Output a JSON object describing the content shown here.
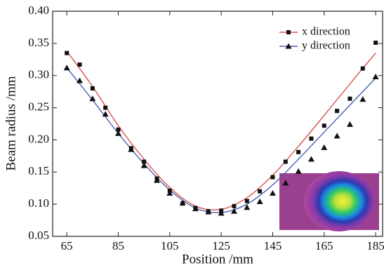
{
  "chart_data": {
    "type": "scatter",
    "x_label": "Position /mm",
    "y_label": "Beam radius /mm",
    "x": [
      65,
      70,
      75,
      80,
      85,
      90,
      95,
      100,
      105,
      110,
      115,
      120,
      125,
      130,
      135,
      140,
      145,
      150,
      155,
      160,
      165,
      170,
      175,
      180,
      185
    ],
    "series": [
      {
        "name": "x direction",
        "color": "#d9534f",
        "marker": "square",
        "values": [
          0.335,
          0.317,
          0.28,
          0.25,
          0.216,
          0.187,
          0.166,
          0.14,
          0.121,
          0.101,
          0.094,
          0.089,
          0.09,
          0.097,
          0.105,
          0.12,
          0.142,
          0.166,
          0.181,
          0.202,
          0.222,
          0.245,
          0.264,
          0.311,
          0.351
        ],
        "fit_x": [
          65,
          75,
          85,
          95,
          105,
          115,
          125,
          135,
          145,
          155,
          165,
          175,
          185
        ],
        "fit": [
          0.338,
          0.283,
          0.222,
          0.17,
          0.126,
          0.097,
          0.092,
          0.11,
          0.145,
          0.19,
          0.238,
          0.287,
          0.335
        ]
      },
      {
        "name": "y direction",
        "color": "#4a5fb0",
        "marker": "triangle",
        "values": [
          0.312,
          0.292,
          0.264,
          0.24,
          0.21,
          0.185,
          0.16,
          0.137,
          0.117,
          0.102,
          0.093,
          0.088,
          0.086,
          0.089,
          0.095,
          0.104,
          0.117,
          0.133,
          0.151,
          0.17,
          0.188,
          0.206,
          0.224,
          0.263,
          0.298
        ],
        "fit_x": [
          65,
          75,
          85,
          95,
          105,
          115,
          125,
          135,
          145,
          155,
          165,
          175,
          185
        ],
        "fit": [
          0.312,
          0.262,
          0.21,
          0.163,
          0.122,
          0.094,
          0.087,
          0.1,
          0.13,
          0.17,
          0.212,
          0.254,
          0.296
        ]
      }
    ],
    "xlim": [
      59.5,
      187.7
    ],
    "xticks": [
      65,
      85,
      105,
      125,
      145,
      165,
      185
    ],
    "ylim": [
      0.05,
      0.4
    ],
    "yticks": [
      0.05,
      {
        "value": 0.1,
        "label": "0.10"
      },
      0.15,
      {
        "value": 0.2,
        "label": "0.20"
      },
      0.25,
      {
        "value": 0.3,
        "label": "0.30"
      },
      0.35,
      {
        "value": 0.4,
        "label": "0.40"
      }
    ],
    "legend": "upper-right",
    "grid": false
  }
}
